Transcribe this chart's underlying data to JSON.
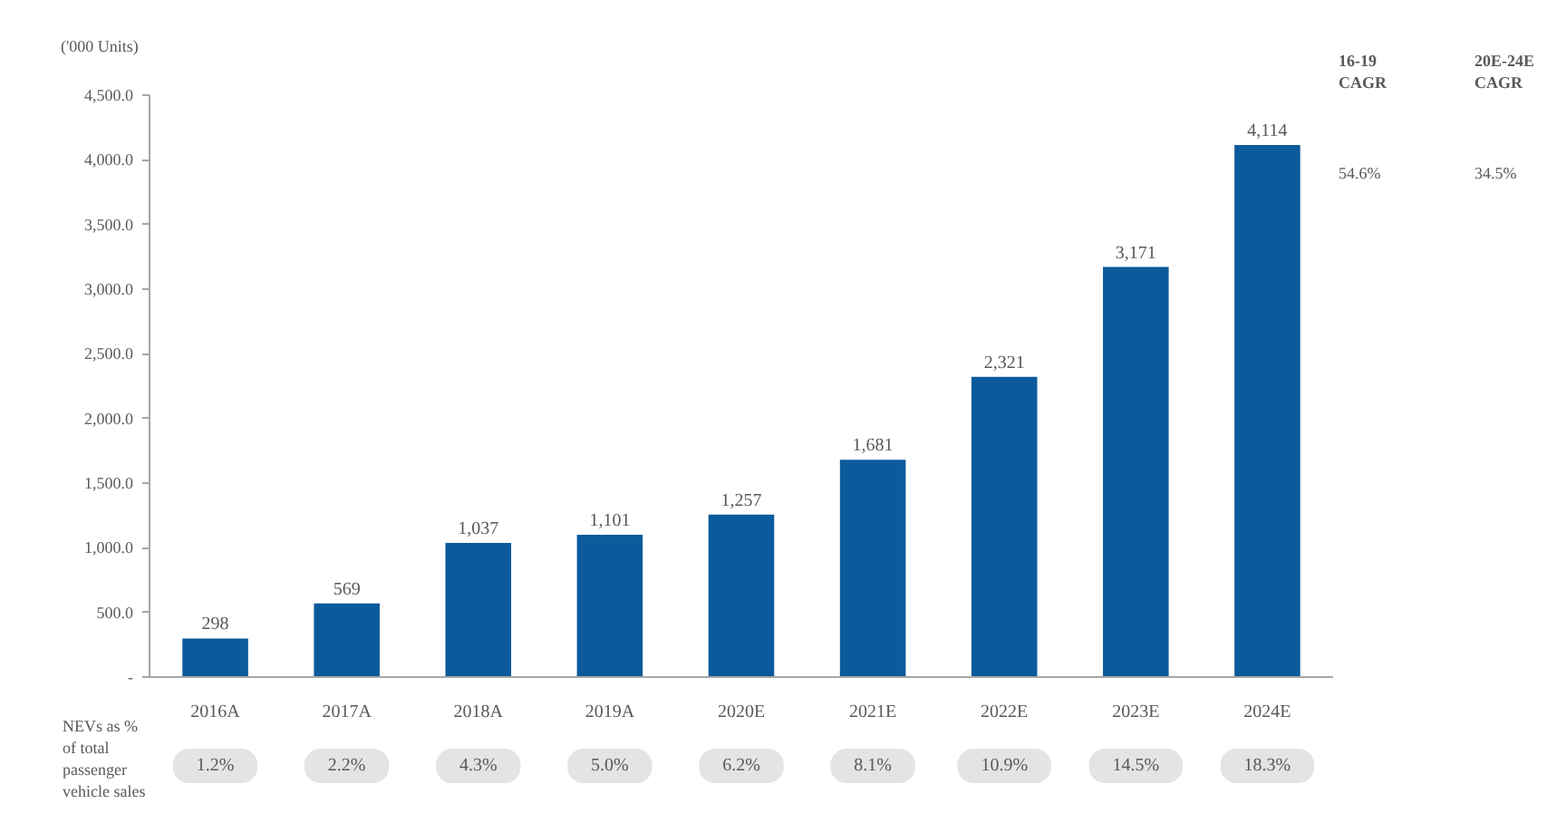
{
  "chart_data": {
    "type": "bar",
    "ylabel": "('000 Units)",
    "categories": [
      "2016A",
      "2017A",
      "2018A",
      "2019A",
      "2020E",
      "2021E",
      "2022E",
      "2023E",
      "2024E"
    ],
    "values": [
      298,
      569,
      1037,
      1101,
      1257,
      1681,
      2321,
      3171,
      4114
    ],
    "value_labels": [
      "298",
      "569",
      "1,037",
      "1,101",
      "1,257",
      "1,681",
      "2,321",
      "3,171",
      "4,114"
    ],
    "color": "#0b5a9c",
    "ylim": [
      0,
      4500
    ],
    "yticks": [
      {
        "value": 0,
        "label": "-"
      },
      {
        "value": 500,
        "label": "500.0"
      },
      {
        "value": 1000,
        "label": "1,000.0"
      },
      {
        "value": 1500,
        "label": "1,500.0"
      },
      {
        "value": 2000,
        "label": "2,000.0"
      },
      {
        "value": 2500,
        "label": "2,500.0"
      },
      {
        "value": 3000,
        "label": "3,000.0"
      },
      {
        "value": 3500,
        "label": "3,500.0"
      },
      {
        "value": 4000,
        "label": "4,000.0"
      },
      {
        "value": 4500,
        "label": "4,500.0"
      }
    ],
    "annotations": [
      "NEVs as %\nof total\npassenger\nvehicle sales",
      "1.2%",
      "2.2%",
      "4.3%",
      "5.0%",
      "6.2%",
      "8.1%",
      "10.9%",
      "14.5%",
      "18.3%",
      "16-19\nCAGR",
      "20E-24E\nCAGR",
      "54.6%",
      "34.5%"
    ]
  }
}
